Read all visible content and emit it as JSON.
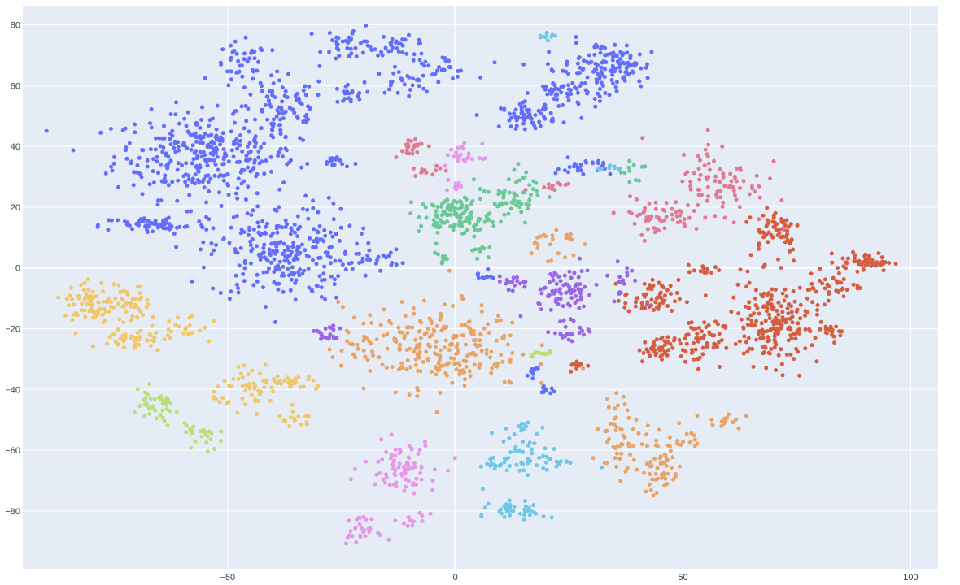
{
  "chart_data": {
    "type": "scatter",
    "title": "",
    "xlabel": "",
    "ylabel": "",
    "xlim": [
      -95,
      106
    ],
    "ylim": [
      -99,
      86
    ],
    "grid": true,
    "x_ticks": [
      -50,
      0,
      50,
      100
    ],
    "x_tick_labels": [
      "−50",
      "0",
      "50",
      "100"
    ],
    "y_ticks": [
      80,
      60,
      40,
      20,
      0,
      -20,
      -40,
      -60,
      -80
    ],
    "y_tick_labels": [
      "80",
      "60",
      "40",
      "20",
      "0",
      "−20",
      "−40",
      "−60",
      "−80"
    ],
    "colors": {
      "background": "#e5ecf6",
      "blue": "#636efa",
      "red": "#d55e40",
      "orange": "#e8a365",
      "pink": "#e17a92",
      "green": "#6cc896",
      "yellow": "#f0c86a",
      "lightgreen": "#b9df79",
      "violet": "#e598e8",
      "purple": "#9966e8",
      "cyan": "#6ec8e6"
    },
    "clusters": [
      {
        "color": "blue",
        "cx": -55,
        "cy": 37,
        "sx": 10,
        "sy": 7,
        "n": 320
      },
      {
        "color": "blue",
        "cx": -38,
        "cy": 52,
        "sx": 5,
        "sy": 6,
        "n": 80
      },
      {
        "color": "blue",
        "cx": -47,
        "cy": 66,
        "sx": 3,
        "sy": 4,
        "n": 40
      },
      {
        "color": "blue",
        "cx": -23,
        "cy": 74,
        "sx": 3,
        "sy": 3,
        "n": 40
      },
      {
        "color": "blue",
        "cx": -12,
        "cy": 73,
        "sx": 3,
        "sy": 1.5,
        "n": 30
      },
      {
        "color": "blue",
        "cx": -4,
        "cy": 66,
        "sx": 4,
        "sy": 2,
        "n": 30
      },
      {
        "color": "blue",
        "cx": -12,
        "cy": 61,
        "sx": 3,
        "sy": 2,
        "n": 25
      },
      {
        "color": "blue",
        "cx": -24,
        "cy": 57,
        "sx": 2,
        "sy": 2,
        "n": 20
      },
      {
        "color": "blue",
        "cx": -66,
        "cy": 14,
        "sx": 6,
        "sy": 1.5,
        "n": 60
      },
      {
        "color": "blue",
        "cx": -38,
        "cy": 5,
        "sx": 8,
        "sy": 8,
        "n": 260
      },
      {
        "color": "blue",
        "cx": -18,
        "cy": 3,
        "sx": 3,
        "sy": 1.5,
        "n": 25
      },
      {
        "color": "blue",
        "cx": 30,
        "cy": 65,
        "sx": 5,
        "sy": 5,
        "n": 80
      },
      {
        "color": "blue",
        "cx": 37,
        "cy": 66,
        "sx": 3,
        "sy": 3,
        "n": 60
      },
      {
        "color": "blue",
        "cx": 16,
        "cy": 50,
        "sx": 3,
        "sy": 2,
        "n": 60
      },
      {
        "color": "blue",
        "cx": 23,
        "cy": 58,
        "sx": 3,
        "sy": 2,
        "n": 40
      },
      {
        "color": "blue",
        "cx": 28,
        "cy": 33,
        "sx": 3,
        "sy": 1.5,
        "n": 30
      },
      {
        "color": "blue",
        "cx": -26,
        "cy": 35,
        "sx": 1.5,
        "sy": 1,
        "n": 15
      },
      {
        "color": "blue",
        "cx": 6,
        "cy": -3,
        "sx": 1,
        "sy": 1,
        "n": 10
      },
      {
        "color": "blue",
        "cx": 17,
        "cy": -34,
        "sx": 1,
        "sy": 1,
        "n": 10
      },
      {
        "color": "blue",
        "cx": 20,
        "cy": -40,
        "sx": 1,
        "sy": 1,
        "n": 10
      },
      {
        "color": "red",
        "cx": 70,
        "cy": -18,
        "sx": 5,
        "sy": 7,
        "n": 200
      },
      {
        "color": "red",
        "cx": 53,
        "cy": -24,
        "sx": 3,
        "sy": 4,
        "n": 60
      },
      {
        "color": "red",
        "cx": 44,
        "cy": -27,
        "sx": 2,
        "sy": 2,
        "n": 40
      },
      {
        "color": "red",
        "cx": 43,
        "cy": -10,
        "sx": 3,
        "sy": 3,
        "n": 60
      },
      {
        "color": "red",
        "cx": 90,
        "cy": 2,
        "sx": 3,
        "sy": 1.5,
        "n": 50
      },
      {
        "color": "red",
        "cx": 83,
        "cy": -6,
        "sx": 3,
        "sy": 2,
        "n": 30
      },
      {
        "color": "red",
        "cx": 84,
        "cy": -21,
        "sx": 1.5,
        "sy": 1.5,
        "n": 15
      },
      {
        "color": "red",
        "cx": 70,
        "cy": 13,
        "sx": 3,
        "sy": 4,
        "n": 60
      },
      {
        "color": "red",
        "cx": 55,
        "cy": -1,
        "sx": 2,
        "sy": 1,
        "n": 15
      },
      {
        "color": "red",
        "cx": 27,
        "cy": -32,
        "sx": 1,
        "sy": 1,
        "n": 10
      },
      {
        "color": "pink",
        "cx": 58,
        "cy": 28,
        "sx": 5,
        "sy": 7,
        "n": 90
      },
      {
        "color": "pink",
        "cx": 44,
        "cy": 17,
        "sx": 4,
        "sy": 3,
        "n": 50
      },
      {
        "color": "pink",
        "cx": -10,
        "cy": 40,
        "sx": 2,
        "sy": 1.5,
        "n": 25
      },
      {
        "color": "pink",
        "cx": -6,
        "cy": 32,
        "sx": 1.5,
        "sy": 1,
        "n": 12
      },
      {
        "color": "pink",
        "cx": 21,
        "cy": 27,
        "sx": 2,
        "sy": 1,
        "n": 12
      },
      {
        "color": "green",
        "cx": 0,
        "cy": 17,
        "sx": 4,
        "sy": 3,
        "n": 120
      },
      {
        "color": "green",
        "cx": 10,
        "cy": 22,
        "sx": 3,
        "sy": 2,
        "n": 30
      },
      {
        "color": "green",
        "cx": 15,
        "cy": 25,
        "sx": 2,
        "sy": 4,
        "n": 30
      },
      {
        "color": "green",
        "cx": -3,
        "cy": 3,
        "sx": 1,
        "sy": 1.5,
        "n": 12
      },
      {
        "color": "green",
        "cx": 39,
        "cy": 32,
        "sx": 1.5,
        "sy": 3,
        "n": 12
      },
      {
        "color": "green",
        "cx": 5,
        "cy": 6,
        "sx": 1,
        "sy": 1,
        "n": 10
      },
      {
        "color": "orange",
        "cx": -5,
        "cy": -26,
        "sx": 10,
        "sy": 7,
        "n": 260
      },
      {
        "color": "orange",
        "cx": 37,
        "cy": -52,
        "sx": 3,
        "sy": 5,
        "n": 40
      },
      {
        "color": "orange",
        "cx": 45,
        "cy": -65,
        "sx": 2,
        "sy": 5,
        "n": 50
      },
      {
        "color": "orange",
        "cx": 35,
        "cy": -64,
        "sx": 2,
        "sy": 2,
        "n": 15
      },
      {
        "color": "orange",
        "cx": 50,
        "cy": -56,
        "sx": 2,
        "sy": 2,
        "n": 15
      },
      {
        "color": "orange",
        "cx": 59,
        "cy": -50,
        "sx": 2,
        "sy": 1.5,
        "n": 15
      },
      {
        "color": "orange",
        "cx": 21,
        "cy": 8,
        "sx": 3,
        "sy": 3,
        "n": 25
      },
      {
        "color": "yellow",
        "cx": -80,
        "cy": -12,
        "sx": 3,
        "sy": 4,
        "n": 70
      },
      {
        "color": "yellow",
        "cx": -71,
        "cy": -12,
        "sx": 2,
        "sy": 3,
        "n": 40
      },
      {
        "color": "yellow",
        "cx": -71,
        "cy": -24,
        "sx": 3,
        "sy": 2,
        "n": 40
      },
      {
        "color": "yellow",
        "cx": -60,
        "cy": -20,
        "sx": 4,
        "sy": 3,
        "n": 25
      },
      {
        "color": "yellow",
        "cx": -45,
        "cy": -40,
        "sx": 4,
        "sy": 3,
        "n": 50
      },
      {
        "color": "yellow",
        "cx": -35,
        "cy": -38,
        "sx": 3,
        "sy": 1.5,
        "n": 30
      },
      {
        "color": "yellow",
        "cx": -35,
        "cy": -50,
        "sx": 2,
        "sy": 1.5,
        "n": 15
      },
      {
        "color": "lightgreen",
        "cx": -66,
        "cy": -46,
        "sx": 3,
        "sy": 3,
        "n": 40
      },
      {
        "color": "lightgreen",
        "cx": -56,
        "cy": -55,
        "sx": 2,
        "sy": 3,
        "n": 25
      },
      {
        "color": "lightgreen",
        "cx": 19,
        "cy": -28,
        "sx": 1.5,
        "sy": 0.5,
        "n": 10
      },
      {
        "color": "violet",
        "cx": -12,
        "cy": -65,
        "sx": 4,
        "sy": 4,
        "n": 80
      },
      {
        "color": "violet",
        "cx": -21,
        "cy": -86,
        "sx": 2,
        "sy": 2,
        "n": 30
      },
      {
        "color": "violet",
        "cx": -9,
        "cy": -83,
        "sx": 1.5,
        "sy": 1,
        "n": 12
      },
      {
        "color": "violet",
        "cx": 2,
        "cy": 37,
        "sx": 2,
        "sy": 2,
        "n": 25
      },
      {
        "color": "violet",
        "cx": 0,
        "cy": 27,
        "sx": 1,
        "sy": 1,
        "n": 10
      },
      {
        "color": "purple",
        "cx": 24,
        "cy": -8,
        "sx": 4,
        "sy": 4,
        "n": 80
      },
      {
        "color": "purple",
        "cx": -28,
        "cy": -22,
        "sx": 1.5,
        "sy": 1.5,
        "n": 20
      },
      {
        "color": "purple",
        "cx": 25,
        "cy": -22,
        "sx": 2,
        "sy": 2,
        "n": 20
      },
      {
        "color": "purple",
        "cx": 37,
        "cy": -3,
        "sx": 2,
        "sy": 3,
        "n": 15
      },
      {
        "color": "purple",
        "cx": 13,
        "cy": -5,
        "sx": 2,
        "sy": 1.5,
        "n": 15
      },
      {
        "color": "cyan",
        "cx": 15,
        "cy": -62,
        "sx": 4,
        "sy": 4,
        "n": 50
      },
      {
        "color": "cyan",
        "cx": 14,
        "cy": -80,
        "sx": 3,
        "sy": 1.5,
        "n": 40
      },
      {
        "color": "cyan",
        "cx": 14,
        "cy": -52,
        "sx": 1.5,
        "sy": 1.5,
        "n": 12
      },
      {
        "color": "cyan",
        "cx": 8,
        "cy": -65,
        "sx": 1.5,
        "sy": 0.5,
        "n": 10
      },
      {
        "color": "cyan",
        "cx": 23,
        "cy": -64,
        "sx": 2,
        "sy": 0.5,
        "n": 10
      },
      {
        "color": "cyan",
        "cx": 20,
        "cy": 76,
        "sx": 1,
        "sy": 0.5,
        "n": 10
      },
      {
        "color": "cyan",
        "cx": 34,
        "cy": 33,
        "sx": 1.5,
        "sy": 0.5,
        "n": 8
      }
    ]
  }
}
